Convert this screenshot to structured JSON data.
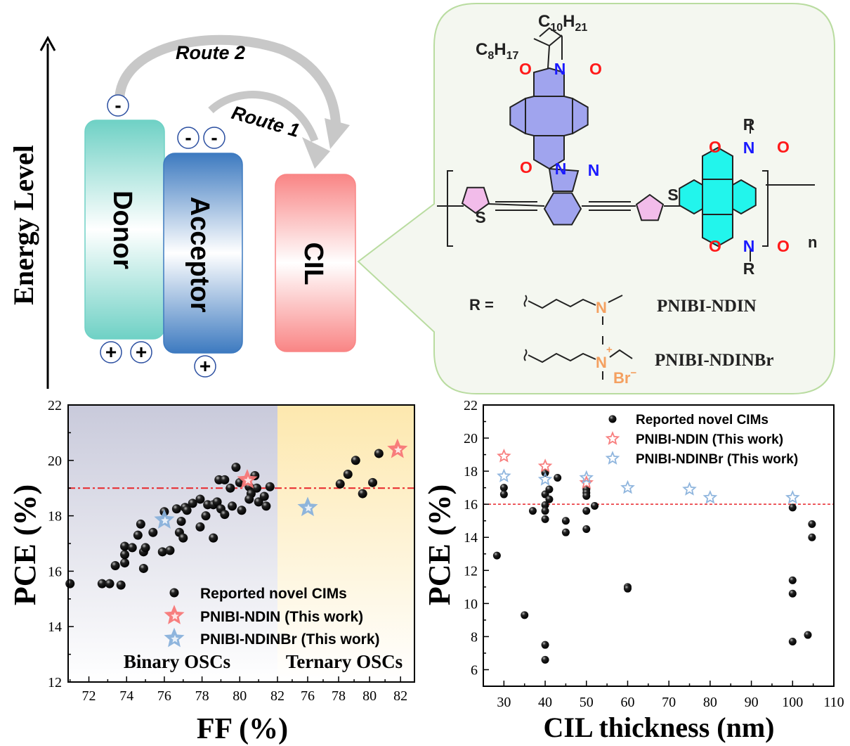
{
  "diagram": {
    "energy_axis_label": "Energy Level",
    "boxes": {
      "donor": "Donor",
      "acceptor": "Acceptor",
      "cil": "CIL"
    },
    "routes": {
      "route2": "Route 2",
      "route1": "Route 1"
    },
    "charges": {
      "minus": "-",
      "plus": "+"
    },
    "colors": {
      "donor": "#6fd1c5",
      "acceptor": "#3d7ac0",
      "cil": "#f98585",
      "arrow": "#c8c8c8",
      "charge_ring": "#2a4ea0"
    }
  },
  "structure": {
    "alkyl_top": {
      "c": "C",
      "c_sub": "10",
      "h": "H",
      "h_sub": "21"
    },
    "alkyl_left": {
      "c": "C",
      "c_sub": "8",
      "h": "H",
      "h_sub": "17"
    },
    "atoms": {
      "o": "O",
      "n": "N",
      "s": "S",
      "r": "R"
    },
    "repeat": "n",
    "r_equals": "R =",
    "polymer1": "PNIBI-NDIN",
    "polymer2": "PNIBI-NDINBr",
    "charge_plus": "+",
    "bromide": "Br",
    "bromide_charge": "−",
    "colors": {
      "nibi_core": "#a0a4ee",
      "thiophene": "#f2bcea",
      "ndi_core": "#22f5ec",
      "oxygen": "#ff1a1a",
      "nitrogen": "#1a1aff",
      "amine": "#f4a060",
      "panel_bg": "#f4f7f0",
      "panel_border": "#b9dca0"
    }
  },
  "chart_data": [
    {
      "type": "scatter",
      "xlabel": "FF (%)",
      "ylabel": "PCE (%)",
      "ylim": [
        12,
        22
      ],
      "yticks": [
        12,
        14,
        16,
        18,
        20,
        22
      ],
      "x_segments": [
        {
          "label": "Binary OSCs",
          "xlim": [
            70.9,
            82
          ],
          "xticks": [
            72,
            74,
            76,
            78,
            80,
            82
          ],
          "background": "#c9cadb"
        },
        {
          "label": "Ternary OSCs",
          "xlim": [
            74.05,
            82.9
          ],
          "xticks": [
            76,
            78,
            80,
            82
          ],
          "background": "#fde8ae"
        }
      ],
      "reference_line": {
        "y": 19,
        "style": "dash-dot",
        "color": "#e8262a"
      },
      "legend_position": "bottom-right",
      "series": [
        {
          "name": "Reported novel CIMs",
          "marker": "sphere",
          "color": "#000000",
          "binary": [
            [
              71.0,
              15.55
            ],
            [
              72.7,
              15.55
            ],
            [
              73.1,
              15.55
            ],
            [
              73.7,
              15.5
            ],
            [
              73.4,
              16.2
            ],
            [
              73.9,
              16.3
            ],
            [
              73.9,
              16.6
            ],
            [
              73.9,
              16.9
            ],
            [
              74.3,
              16.85
            ],
            [
              74.6,
              17.3
            ],
            [
              74.75,
              17.7
            ],
            [
              74.9,
              16.1
            ],
            [
              74.9,
              16.7
            ],
            [
              75.0,
              16.85
            ],
            [
              75.4,
              17.4
            ],
            [
              75.9,
              16.7
            ],
            [
              76.3,
              16.75
            ],
            [
              76.0,
              18.15
            ],
            [
              76.65,
              18.25
            ],
            [
              76.9,
              17.8
            ],
            [
              76.8,
              17.4
            ],
            [
              77.0,
              17.2
            ],
            [
              77.1,
              18.3
            ],
            [
              77.2,
              18.2
            ],
            [
              77.5,
              18.45
            ],
            [
              77.9,
              18.6
            ],
            [
              77.9,
              17.6
            ],
            [
              78.2,
              18.0
            ],
            [
              78.3,
              18.4
            ],
            [
              78.6,
              17.2
            ],
            [
              78.6,
              18.4
            ],
            [
              78.8,
              18.5
            ],
            [
              78.9,
              19.3
            ],
            [
              79.2,
              19.3
            ],
            [
              79.0,
              18.25
            ],
            [
              79.2,
              18.05
            ],
            [
              79.5,
              19.0
            ],
            [
              79.6,
              18.35
            ],
            [
              79.8,
              19.75
            ],
            [
              80.0,
              19.2
            ],
            [
              80.1,
              18.2
            ],
            [
              80.8,
              19.45
            ],
            [
              80.5,
              19.05
            ],
            [
              80.6,
              18.8
            ],
            [
              80.5,
              18.6
            ],
            [
              80.9,
              19.0
            ],
            [
              81.0,
              18.5
            ],
            [
              81.3,
              18.7
            ],
            [
              81.4,
              18.35
            ],
            [
              81.6,
              19.05
            ]
          ],
          "ternary": [
            [
              78.1,
              19.15
            ],
            [
              78.6,
              19.5
            ],
            [
              79.1,
              20.0
            ],
            [
              79.55,
              18.8
            ],
            [
              80.2,
              19.2
            ],
            [
              80.6,
              20.25
            ]
          ]
        },
        {
          "name": "PNIBI-NDIN (This work)",
          "marker": "star",
          "color": "#f87878",
          "binary": [
            [
              80.4,
              19.3
            ]
          ],
          "ternary": [
            [
              81.8,
              20.4
            ]
          ]
        },
        {
          "name": "PNIBI-NDINBr (This work)",
          "marker": "star",
          "color": "#8ab2dc",
          "binary": [
            [
              76.0,
              17.85
            ]
          ],
          "ternary": [
            [
              76.0,
              18.3
            ]
          ]
        }
      ]
    },
    {
      "type": "scatter",
      "xlabel": "CIL thickness (nm)",
      "ylabel": "PCE (%)",
      "xlim": [
        25,
        110
      ],
      "ylim": [
        5,
        22
      ],
      "xticks": [
        30,
        40,
        50,
        60,
        70,
        80,
        90,
        100,
        110
      ],
      "yticks": [
        6,
        8,
        10,
        12,
        14,
        16,
        18,
        20,
        22
      ],
      "reference_line": {
        "y": 16,
        "style": "dashed",
        "color": "#e8262a"
      },
      "legend_position": "top-right",
      "series": [
        {
          "name": "Reported novel CIMs",
          "marker": "sphere",
          "color": "#000000",
          "points": [
            [
              28.3,
              12.9
            ],
            [
              30,
              17.0
            ],
            [
              30,
              16.6
            ],
            [
              35,
              9.3
            ],
            [
              37,
              15.6
            ],
            [
              40,
              17.9
            ],
            [
              40,
              16.6
            ],
            [
              40,
              15.95
            ],
            [
              40,
              15.6
            ],
            [
              40,
              15.1
            ],
            [
              40,
              7.5
            ],
            [
              40,
              6.6
            ],
            [
              41,
              16.9
            ],
            [
              41,
              16.3
            ],
            [
              43,
              17.6
            ],
            [
              45,
              15.0
            ],
            [
              45,
              14.3
            ],
            [
              50,
              16.9
            ],
            [
              50,
              16.7
            ],
            [
              50,
              16.5
            ],
            [
              50,
              15.6
            ],
            [
              50,
              14.5
            ],
            [
              52,
              15.9
            ],
            [
              60,
              11.0
            ],
            [
              60,
              10.9
            ],
            [
              100,
              15.8
            ],
            [
              100,
              11.4
            ],
            [
              100,
              10.6
            ],
            [
              100,
              7.7
            ],
            [
              103.7,
              8.1
            ],
            [
              104.7,
              14.8
            ],
            [
              104.7,
              14.0
            ]
          ]
        },
        {
          "name": "PNIBI-NDIN (This work)",
          "marker": "star",
          "color": "#f87878",
          "points": [
            [
              30,
              18.9
            ],
            [
              40,
              18.3
            ],
            [
              50,
              17.3
            ]
          ]
        },
        {
          "name": "PNIBI-NDINBr (This work)",
          "marker": "star",
          "color": "#8ab2dc",
          "points": [
            [
              30,
              17.7
            ],
            [
              40,
              17.5
            ],
            [
              50,
              17.6
            ],
            [
              60,
              17.0
            ],
            [
              75,
              16.9
            ],
            [
              80,
              16.4
            ],
            [
              100,
              16.4
            ]
          ]
        }
      ]
    }
  ]
}
